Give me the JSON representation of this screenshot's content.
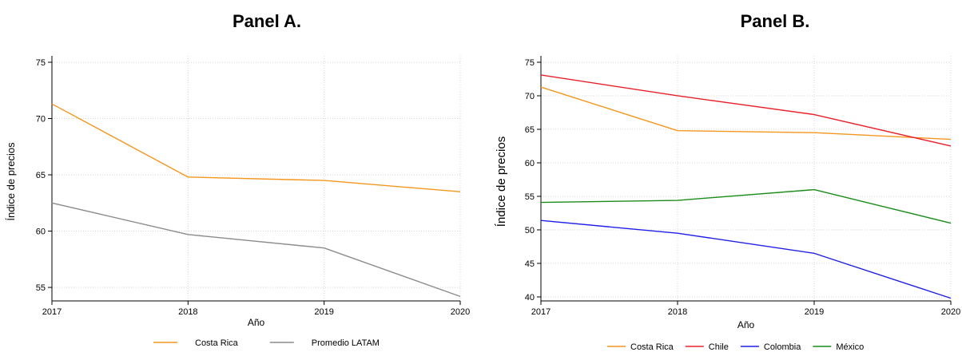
{
  "chart_data": [
    {
      "type": "line",
      "title": "Panel A.",
      "xlabel": "Año",
      "ylabel": "Índice de precios",
      "x": [
        2017,
        2018,
        2019,
        2020
      ],
      "xlim": [
        2017,
        2020
      ],
      "ylim": [
        53.8,
        75
      ],
      "yticks": [
        55,
        60,
        65,
        70,
        75
      ],
      "grid": true,
      "legend": "bottom",
      "series": [
        {
          "name": "Costa Rica",
          "color": "#f5961e",
          "values": [
            71.3,
            64.8,
            64.5,
            63.5
          ]
        },
        {
          "name": "Promedio LATAM",
          "color": "#8c8c8c",
          "values": [
            62.5,
            59.7,
            58.5,
            54.2
          ]
        }
      ]
    },
    {
      "type": "line",
      "title": "Panel B.",
      "xlabel": "Año",
      "ylabel": "Índice de precios",
      "x": [
        2017,
        2018,
        2019,
        2020
      ],
      "xlim": [
        2017,
        2020
      ],
      "ylim": [
        39.4,
        75
      ],
      "yticks": [
        40,
        45,
        50,
        55,
        60,
        65,
        70,
        75
      ],
      "grid": true,
      "legend": "bottom",
      "series": [
        {
          "name": "Costa Rica",
          "color": "#f5961e",
          "values": [
            71.3,
            64.8,
            64.5,
            63.5
          ]
        },
        {
          "name": "Chile",
          "color": "#e8202a",
          "values": [
            73.1,
            70.0,
            67.2,
            62.5
          ]
        },
        {
          "name": "Colombia",
          "color": "#1f1fe6",
          "values": [
            51.4,
            49.5,
            46.5,
            39.8
          ]
        },
        {
          "name": "México",
          "color": "#1a8c1a",
          "values": [
            54.1,
            54.4,
            56.0,
            51.0
          ]
        }
      ]
    }
  ]
}
